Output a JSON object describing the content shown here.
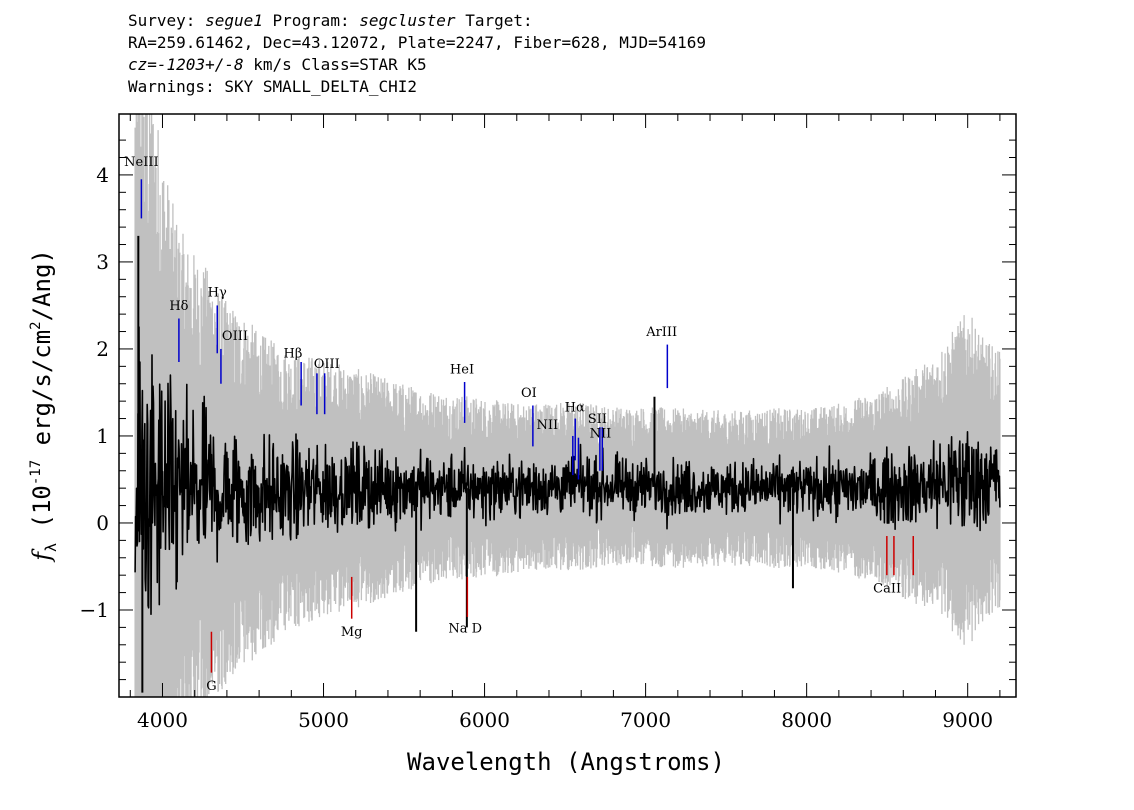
{
  "header": {
    "survey_label": "Survey:",
    "survey": "segue1",
    "program_label": "Program:",
    "program": "segcluster",
    "target_label": "Target:",
    "line2": "RA=259.61462, Dec=43.12072, Plate=2247, Fiber=628, MJD=54169",
    "cz_label": "cz=",
    "cz_value": "-1203+/-8",
    "cz_unit": " km/s Class=STAR K5",
    "line4": "Warnings: SKY SMALL_DELTA_CHI2"
  },
  "chart_data": {
    "type": "line",
    "xlabel": "Wavelength (Angstroms)",
    "ylabel_symbol": "f",
    "ylabel_sub": "λ",
    "ylabel_mid": " (10",
    "ylabel_exp1": "-17",
    "ylabel_units": " erg/s/cm",
    "ylabel_exp2": "2",
    "ylabel_tail": "/Ang)",
    "xlim": [
      3730,
      9300
    ],
    "ylim": [
      -2.0,
      4.7
    ],
    "x_ticks": [
      4000,
      5000,
      6000,
      7000,
      8000,
      9000
    ],
    "y_ticks": [
      -1,
      0,
      1,
      2,
      3,
      4
    ],
    "y_tick_labels": [
      "−1",
      "0",
      "1",
      "2",
      "3",
      "4"
    ],
    "series": [
      {
        "role": "error",
        "color": "#c0c0c0",
        "x": [
          3830,
          3860,
          3890,
          3920,
          3950,
          4000,
          4050,
          4100,
          4150,
          4200,
          4300,
          4400,
          4500,
          4600,
          4700,
          4800,
          4900,
          5000,
          5200,
          5400,
          5600,
          5800,
          6000,
          6200,
          6400,
          6600,
          6800,
          7000,
          7200,
          7400,
          7600,
          7800,
          8000,
          8200,
          8400,
          8600,
          8800,
          8900,
          9000,
          9100,
          9200
        ],
        "y": [
          4.5,
          4.5,
          4.4,
          4.2,
          4.0,
          3.5,
          3.0,
          2.7,
          2.5,
          2.4,
          2.2,
          1.9,
          1.8,
          1.6,
          1.5,
          1.4,
          1.35,
          1.3,
          1.2,
          1.1,
          1.0,
          0.95,
          0.9,
          0.85,
          0.85,
          0.85,
          0.8,
          0.8,
          0.8,
          0.78,
          0.78,
          0.8,
          0.8,
          0.85,
          0.95,
          1.1,
          1.3,
          1.5,
          1.7,
          1.4,
          1.3
        ]
      },
      {
        "role": "flux",
        "color": "#000000",
        "x": [
          3830,
          3860,
          3890,
          3920,
          3950,
          4000,
          4100,
          4200,
          4300,
          4400,
          4500,
          4600,
          4700,
          4800,
          4900,
          5000,
          5200,
          5400,
          5600,
          5800,
          6000,
          6200,
          6400,
          6600,
          6800,
          7000,
          7200,
          7400,
          7600,
          7800,
          8000,
          8200,
          8400,
          8600,
          8800,
          9000,
          9200
        ],
        "y": [
          0.3,
          0.3,
          0.3,
          0.3,
          0.3,
          0.3,
          0.35,
          0.35,
          0.35,
          0.35,
          0.35,
          0.35,
          0.35,
          0.35,
          0.38,
          0.4,
          0.4,
          0.4,
          0.4,
          0.4,
          0.4,
          0.4,
          0.42,
          0.42,
          0.42,
          0.42,
          0.4,
          0.4,
          0.4,
          0.4,
          0.4,
          0.4,
          0.4,
          0.4,
          0.45,
          0.5,
          0.5
        ]
      }
    ],
    "spikes": [
      {
        "x": 3850,
        "y": 3.3
      },
      {
        "x": 3875,
        "y": -1.95
      },
      {
        "x": 5575,
        "y": -1.25
      },
      {
        "x": 5890,
        "y": -1.2
      },
      {
        "x": 7055,
        "y": 1.45
      },
      {
        "x": 7915,
        "y": -0.75
      }
    ],
    "emission_lines": [
      {
        "label": "NeIII",
        "x": 3869,
        "ytop": 3.95,
        "ybot": 3.5,
        "lx": 3869,
        "ly": 4.1
      },
      {
        "label": "Hδ",
        "x": 4102,
        "ytop": 2.35,
        "ybot": 1.85,
        "lx": 4102,
        "ly": 2.45
      },
      {
        "label": "Hγ",
        "x": 4340,
        "ytop": 2.5,
        "ybot": 1.95,
        "lx": 4340,
        "ly": 2.6
      },
      {
        "label": "OIII",
        "x": 4363,
        "ytop": 2.0,
        "ybot": 1.6,
        "lx": 4450,
        "ly": 2.1
      },
      {
        "label": "Hβ",
        "x": 4861,
        "ytop": 1.85,
        "ybot": 1.35,
        "lx": 4810,
        "ly": 1.9
      },
      {
        "label": "OIII",
        "x": 4959,
        "ytop": 1.72,
        "ybot": 1.25,
        "lx": 5020,
        "ly": 1.78
      },
      {
        "label": "OIII",
        "x": 5007,
        "ytop": 1.72,
        "ybot": 1.25,
        "lx": null,
        "ly": null
      },
      {
        "label": "HeI",
        "x": 5876,
        "ytop": 1.62,
        "ybot": 1.15,
        "lx": 5860,
        "ly": 1.72
      },
      {
        "label": "OI",
        "x": 6300,
        "ytop": 1.35,
        "ybot": 0.88,
        "lx": 6275,
        "ly": 1.45
      },
      {
        "label": "NII",
        "x": 6548,
        "ytop": 1.0,
        "ybot": 0.55,
        "lx": 6390,
        "ly": 1.08
      },
      {
        "label": "Hα",
        "x": 6563,
        "ytop": 1.2,
        "ybot": 0.72,
        "lx": 6560,
        "ly": 1.28
      },
      {
        "label": "NII",
        "x": 6583,
        "ytop": 0.98,
        "ybot": 0.5,
        "lx": 6720,
        "ly": 0.98
      },
      {
        "label": "SII",
        "x": 6716,
        "ytop": 1.1,
        "ybot": 0.6,
        "lx": 6700,
        "ly": 1.15
      },
      {
        "label": "SII",
        "x": 6731,
        "ytop": 1.1,
        "ybot": 0.6,
        "lx": null,
        "ly": null
      },
      {
        "label": "ArIII",
        "x": 7135,
        "ytop": 2.05,
        "ybot": 1.55,
        "lx": 7100,
        "ly": 2.15
      }
    ],
    "absorption_lines": [
      {
        "label": "G",
        "x": 4304,
        "ytop": -1.25,
        "ybot": -1.72,
        "lx": 4304,
        "ly": -1.92
      },
      {
        "label": "Mg",
        "x": 5175,
        "ytop": -0.62,
        "ybot": -1.1,
        "lx": 5175,
        "ly": -1.3
      },
      {
        "label": "Na D",
        "x": 5893,
        "ytop": -0.62,
        "ybot": -1.08,
        "lx": 5880,
        "ly": -1.26
      },
      {
        "label": "CaII",
        "x": 8498,
        "ytop": -0.15,
        "ybot": -0.6,
        "lx": 8500,
        "ly": -0.8
      },
      {
        "label": "CaII",
        "x": 8542,
        "ytop": -0.15,
        "ybot": -0.6,
        "lx": null,
        "ly": null
      },
      {
        "label": "CaII",
        "x": 8662,
        "ytop": -0.15,
        "ybot": -0.6,
        "lx": null,
        "ly": null
      }
    ],
    "emission_color": "#0000cc",
    "absorption_color": "#cc0000",
    "grid": false,
    "legend": "none"
  }
}
